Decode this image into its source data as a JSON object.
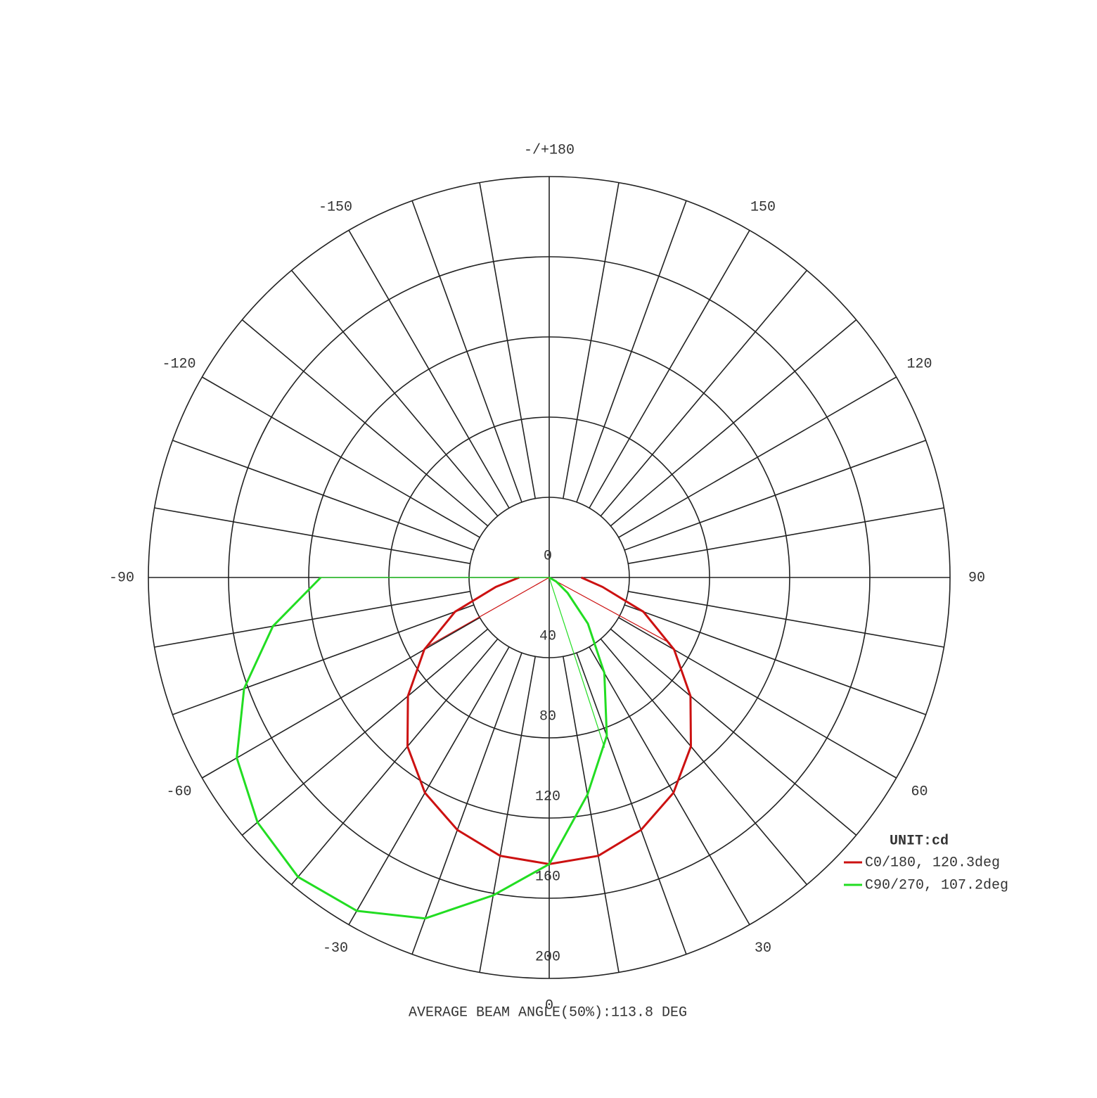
{
  "chart_data": {
    "type": "polar",
    "title": "AVERAGE BEAM ANGLE(50%):113.8 DEG",
    "unit_label": "UNIT:cd",
    "x": [
      -90,
      -80,
      -70,
      -60,
      -50,
      -40,
      -30,
      -20,
      -10,
      0,
      10,
      20,
      30,
      40,
      50,
      60,
      70,
      80,
      90
    ],
    "series": [
      {
        "name": "C0/180, 120.3deg",
        "color": "#cc1111",
        "values": [
          15,
          27,
          50,
          72,
          92,
          110,
          124,
          134,
          141,
          143,
          141,
          134,
          124,
          110,
          92,
          72,
          50,
          27,
          16
        ],
        "beam_edges": [
          -60.5,
          61.5
        ]
      },
      {
        "name": "C90/270, 107.2deg",
        "color": "#22dd22",
        "values": [
          114,
          140,
          162,
          180,
          190,
          195,
          192,
          181,
          161,
          143,
          110,
          84,
          55,
          30,
          12,
          4,
          0,
          0,
          0
        ],
        "beam_edges": [
          -90,
          18
        ]
      }
    ],
    "rlim": [
      0,
      200
    ],
    "rticks": [
      0,
      40,
      80,
      120,
      160,
      200
    ],
    "angle_ticks": [
      {
        "value": 180,
        "label": "-/+180"
      },
      -150,
      -120,
      -90,
      -60,
      -30,
      0,
      30,
      60,
      90,
      120,
      150
    ],
    "angle_grid_step": 10
  }
}
